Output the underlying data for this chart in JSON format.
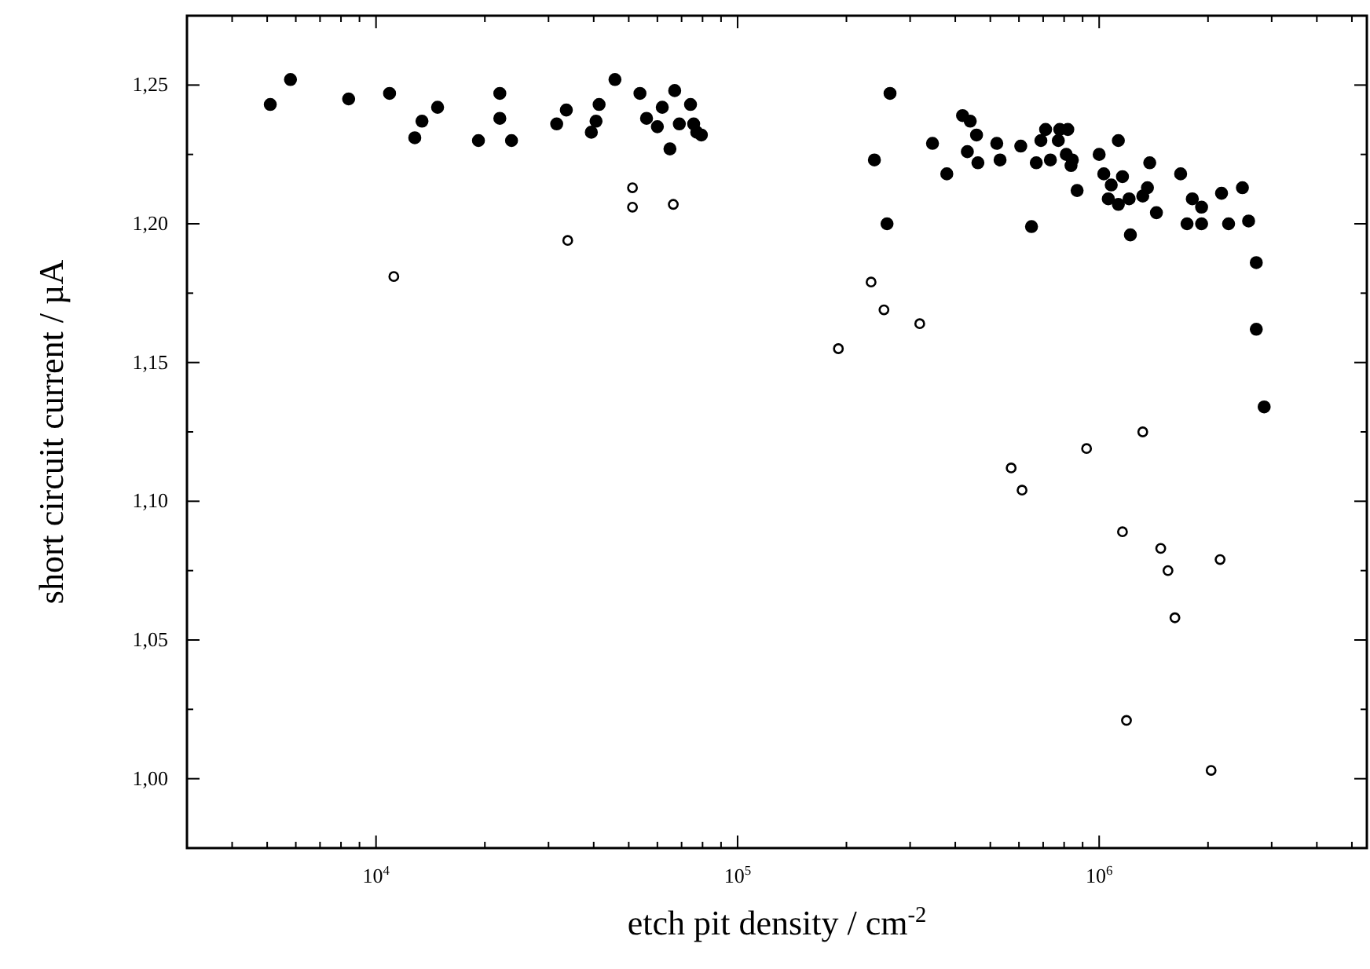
{
  "chart_data": {
    "type": "scatter",
    "xlabel": "etch pit density / cm$^{-2}$",
    "ylabel": "short circuit current / µA",
    "log": "x",
    "marker": "circle",
    "xlim": [
      3000,
      5500000
    ],
    "ylim": [
      0.975,
      1.275
    ],
    "xticks": [
      {
        "value": 4000,
        "label": null
      },
      {
        "value": 5000,
        "label": null
      },
      {
        "value": 6000,
        "label": null
      },
      {
        "value": 7000,
        "label": null
      },
      {
        "value": 8000,
        "label": null
      },
      {
        "value": 9000,
        "label": null
      },
      {
        "value": 10000,
        "label": "10$^{4}$"
      },
      {
        "value": 20000,
        "label": null
      },
      {
        "value": 30000,
        "label": null
      },
      {
        "value": 40000,
        "label": null
      },
      {
        "value": 50000,
        "label": null
      },
      {
        "value": 60000,
        "label": null
      },
      {
        "value": 70000,
        "label": null
      },
      {
        "value": 80000,
        "label": null
      },
      {
        "value": 90000,
        "label": null
      },
      {
        "value": 100000,
        "label": "10$^{5}$"
      },
      {
        "value": 200000,
        "label": null
      },
      {
        "value": 300000,
        "label": null
      },
      {
        "value": 400000,
        "label": null
      },
      {
        "value": 500000,
        "label": null
      },
      {
        "value": 600000,
        "label": null
      },
      {
        "value": 700000,
        "label": null
      },
      {
        "value": 800000,
        "label": null
      },
      {
        "value": 900000,
        "label": null
      },
      {
        "value": 1000000,
        "label": "10$^{6}$"
      },
      {
        "value": 2000000,
        "label": null
      },
      {
        "value": 3000000,
        "label": null
      },
      {
        "value": 4000000,
        "label": null
      },
      {
        "value": 5000000,
        "label": null
      }
    ],
    "yticks": [
      {
        "value": 1.0,
        "label": "1,00"
      },
      {
        "value": 1.025,
        "label": null
      },
      {
        "value": 1.05,
        "label": "1,05"
      },
      {
        "value": 1.075,
        "label": null
      },
      {
        "value": 1.1,
        "label": "1,10"
      },
      {
        "value": 1.125,
        "label": null
      },
      {
        "value": 1.15,
        "label": "1,15"
      },
      {
        "value": 1.175,
        "label": null
      },
      {
        "value": 1.2,
        "label": "1,20"
      },
      {
        "value": 1.225,
        "label": null
      },
      {
        "value": 1.25,
        "label": "1,25"
      }
    ],
    "series": [
      {
        "color": "#000000",
        "x": [
          5100,
          5800,
          8400,
          10900,
          12800,
          13400,
          14800,
          19200,
          22000,
          22000,
          23700,
          31600,
          33600,
          39400,
          40600,
          41400,
          45800,
          53700,
          56000,
          60000,
          61900,
          67000,
          65000,
          69000,
          74100,
          75600,
          77100,
          79400,
          264000,
          239000,
          259000,
          346000,
          379000,
          419000,
          440000,
          458000,
          432000,
          462000,
          521000,
          532000,
          607000,
          650000,
          670000,
          690000,
          711000,
          733000,
          771000,
          778000,
          819000,
          811000,
          843000,
          836000,
          869000,
          1000000,
          1030000,
          1130000,
          1080000,
          1160000,
          1060000,
          1130000,
          1210000,
          1220000,
          1320000,
          1360000,
          1380000,
          1440000,
          1680000,
          1750000,
          1810000,
          1920000,
          1920000,
          2180000,
          2280000,
          2490000,
          2590000,
          2720000,
          2720000,
          2860000
        ],
        "values": [
          1.243,
          1.252,
          1.245,
          1.247,
          1.231,
          1.237,
          1.242,
          1.23,
          1.247,
          1.238,
          1.23,
          1.236,
          1.241,
          1.233,
          1.237,
          1.243,
          1.252,
          1.247,
          1.238,
          1.235,
          1.242,
          1.248,
          1.227,
          1.236,
          1.243,
          1.236,
          1.233,
          1.232,
          1.247,
          1.223,
          1.2,
          1.229,
          1.218,
          1.239,
          1.237,
          1.232,
          1.226,
          1.222,
          1.229,
          1.223,
          1.228,
          1.199,
          1.222,
          1.23,
          1.234,
          1.223,
          1.23,
          1.234,
          1.234,
          1.225,
          1.223,
          1.221,
          1.212,
          1.225,
          1.218,
          1.23,
          1.214,
          1.217,
          1.209,
          1.207,
          1.209,
          1.196,
          1.21,
          1.213,
          1.222,
          1.204,
          1.218,
          1.2,
          1.209,
          1.206,
          1.2,
          1.211,
          1.2,
          1.213,
          1.201,
          1.186,
          1.162,
          1.134
        ]
      },
      {
        "color": "#000000",
        "x": [
          11200,
          33900,
          51200,
          51200,
          66400,
          234000,
          254000,
          319000,
          190000,
          571000,
          612000,
          923000,
          1320000,
          1160000,
          1480000,
          1550000,
          2160000,
          1620000,
          1190000,
          2040000
        ],
        "values": [
          1.181,
          1.194,
          1.213,
          1.206,
          1.207,
          1.179,
          1.169,
          1.164,
          1.155,
          1.112,
          1.104,
          1.119,
          1.125,
          1.089,
          1.083,
          1.075,
          1.079,
          1.058,
          1.021,
          1.003
        ]
      }
    ]
  }
}
